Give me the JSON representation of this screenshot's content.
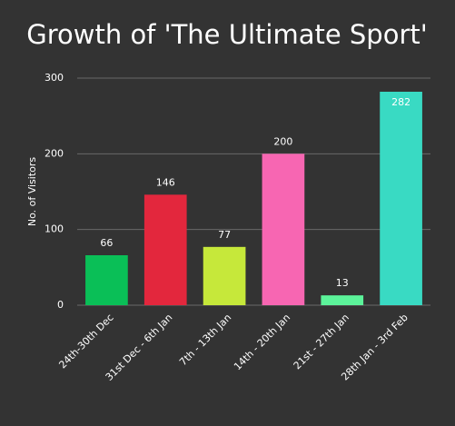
{
  "chart_data": {
    "type": "bar",
    "title": "Growth of 'The Ultimate Sport'",
    "y_label": "No. of Visitors",
    "categories": [
      "24th-30th Dec",
      "31st Dec - 6th Jan",
      "7th - 13th Jan",
      "14th - 20th Jan",
      "21st - 27th Jan",
      "28th Jan - 3rd Feb"
    ],
    "values": [
      66,
      146,
      77,
      200,
      13,
      282
    ],
    "colors": [
      "#0abf57",
      "#e3273d",
      "#c6e83a",
      "#f766b2",
      "#5cf39a",
      "#39dac3"
    ],
    "ylim": [
      0,
      300
    ],
    "yticks": [
      0,
      100,
      200,
      300
    ],
    "grid": true
  }
}
